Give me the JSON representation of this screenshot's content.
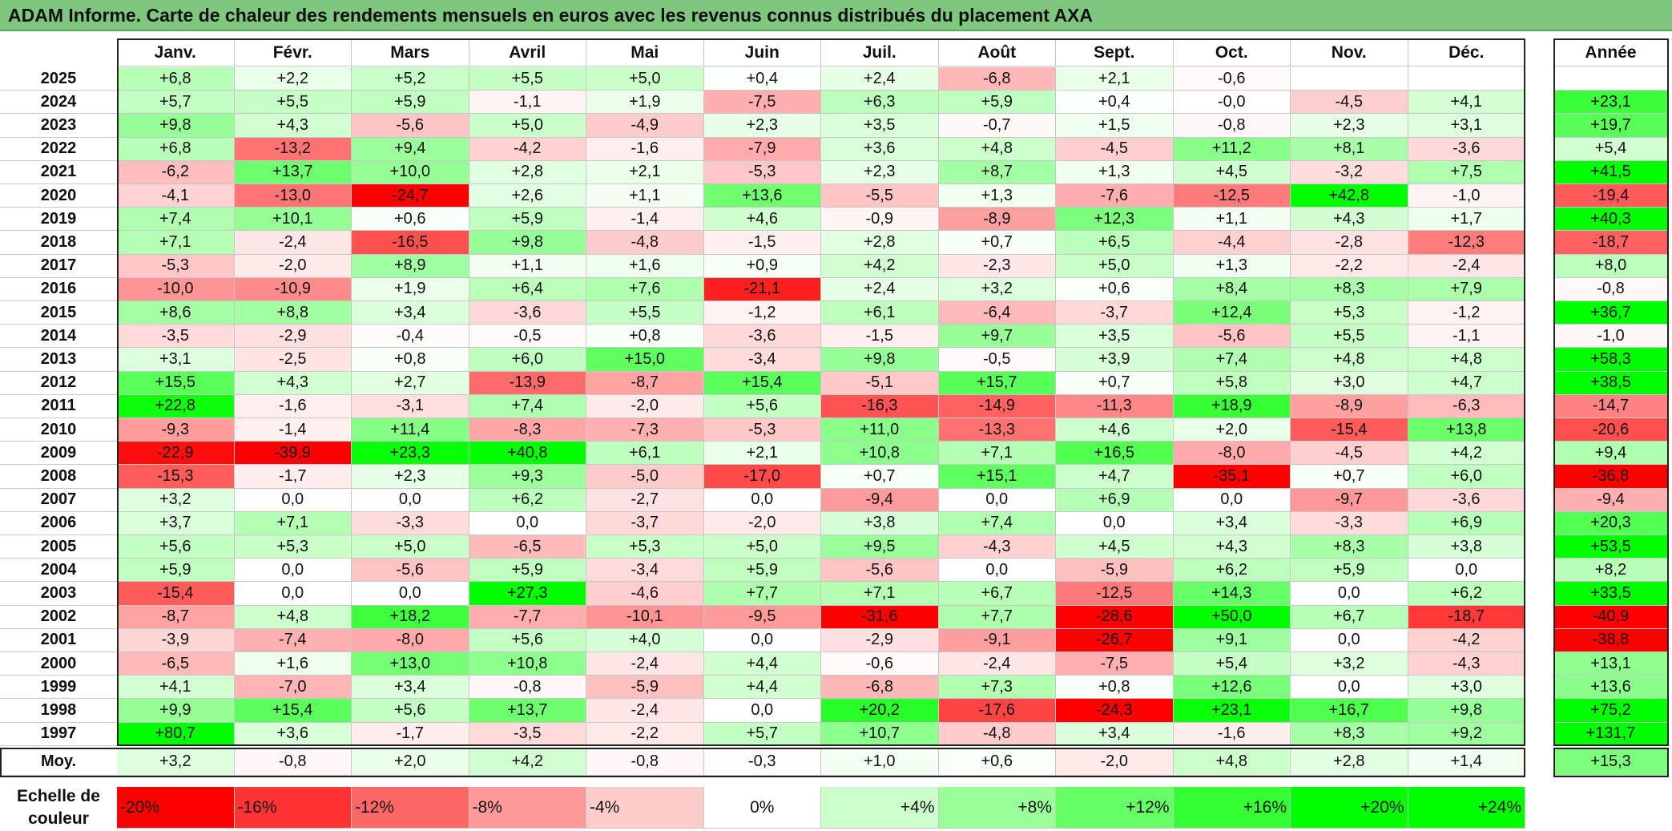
{
  "title": "ADAM Informe. Carte de chaleur des rendements mensuels en euros avec les revenus connus distribués du placement AXA",
  "chart_data": {
    "type": "heatmap",
    "title": "ADAM Informe. Carte de chaleur des rendements mensuels en euros avec les revenus connus distribués du placement AXA",
    "columns": [
      "Janv.",
      "Févr.",
      "Mars",
      "Avril",
      "Mai",
      "Juin",
      "Juil.",
      "Août",
      "Sept.",
      "Oct.",
      "Nov.",
      "Déc."
    ],
    "year_column_label": "Année",
    "rows": [
      {
        "year": "2025",
        "values": [
          "+6,8",
          "+2,2",
          "+5,2",
          "+5,5",
          "+5,0",
          "+0,4",
          "+2,4",
          "-6,8",
          "+2,1",
          "-0,6",
          "",
          ""
        ],
        "annual": ""
      },
      {
        "year": "2024",
        "values": [
          "+5,7",
          "+5,5",
          "+5,9",
          "-1,1",
          "+1,9",
          "-7,5",
          "+6,3",
          "+5,9",
          "+0,4",
          "-0,0",
          "-4,5",
          "+4,1"
        ],
        "annual": "+23,1"
      },
      {
        "year": "2023",
        "values": [
          "+9,8",
          "+4,3",
          "-5,6",
          "+5,0",
          "-4,9",
          "+2,3",
          "+3,5",
          "-0,7",
          "+1,5",
          "-0,8",
          "+2,3",
          "+3,1"
        ],
        "annual": "+19,7"
      },
      {
        "year": "2022",
        "values": [
          "+6,8",
          "-13,2",
          "+9,4",
          "-4,2",
          "-1,6",
          "-7,9",
          "+3,6",
          "+4,8",
          "-4,5",
          "+11,2",
          "+8,1",
          "-3,6"
        ],
        "annual": "+5,4"
      },
      {
        "year": "2021",
        "values": [
          "-6,2",
          "+13,7",
          "+10,0",
          "+2,8",
          "+2,1",
          "-5,3",
          "+2,3",
          "+8,7",
          "+1,3",
          "+4,5",
          "-3,2",
          "+7,5"
        ],
        "annual": "+41,5"
      },
      {
        "year": "2020",
        "values": [
          "-4,1",
          "-13,0",
          "-24,7",
          "+2,6",
          "+1,1",
          "+13,6",
          "-5,5",
          "+1,3",
          "-7,6",
          "-12,5",
          "+42,8",
          "-1,0"
        ],
        "annual": "-19,4"
      },
      {
        "year": "2019",
        "values": [
          "+7,4",
          "+10,1",
          "+0,6",
          "+5,9",
          "-1,4",
          "+4,6",
          "-0,9",
          "-8,9",
          "+12,3",
          "+1,1",
          "+4,3",
          "+1,7"
        ],
        "annual": "+40,3"
      },
      {
        "year": "2018",
        "values": [
          "+7,1",
          "-2,4",
          "-16,5",
          "+9,8",
          "-4,8",
          "-1,5",
          "+2,8",
          "+0,7",
          "+6,5",
          "-4,4",
          "-2,8",
          "-12,3"
        ],
        "annual": "-18,7"
      },
      {
        "year": "2017",
        "values": [
          "-5,3",
          "-2,0",
          "+8,9",
          "+1,1",
          "+1,6",
          "+0,9",
          "+4,2",
          "-2,3",
          "+5,0",
          "+1,3",
          "-2,2",
          "-2,4"
        ],
        "annual": "+8,0"
      },
      {
        "year": "2016",
        "values": [
          "-10,0",
          "-10,9",
          "+1,9",
          "+6,4",
          "+7,6",
          "-21,1",
          "+2,4",
          "+3,2",
          "+0,6",
          "+8,4",
          "+8,3",
          "+7,9"
        ],
        "annual": "-0,8"
      },
      {
        "year": "2015",
        "values": [
          "+8,6",
          "+8,8",
          "+3,4",
          "-3,6",
          "+5,5",
          "-1,2",
          "+6,1",
          "-6,4",
          "-3,7",
          "+12,4",
          "+5,3",
          "-1,2"
        ],
        "annual": "+36,7"
      },
      {
        "year": "2014",
        "values": [
          "-3,5",
          "-2,9",
          "-0,4",
          "-0,5",
          "+0,8",
          "-3,6",
          "-1,5",
          "+9,7",
          "+3,5",
          "-5,6",
          "+5,5",
          "-1,1"
        ],
        "annual": "-1,0"
      },
      {
        "year": "2013",
        "values": [
          "+3,1",
          "-2,5",
          "+0,8",
          "+6,0",
          "+15,0",
          "-3,4",
          "+9,8",
          "-0,5",
          "+3,9",
          "+7,4",
          "+4,8",
          "+4,8"
        ],
        "annual": "+58,3"
      },
      {
        "year": "2012",
        "values": [
          "+15,5",
          "+4,3",
          "+2,7",
          "-13,9",
          "-8,7",
          "+15,4",
          "-5,1",
          "+15,7",
          "+0,7",
          "+5,8",
          "+3,0",
          "+4,7"
        ],
        "annual": "+38,5"
      },
      {
        "year": "2011",
        "values": [
          "+22,8",
          "-1,6",
          "-3,1",
          "+7,4",
          "-2,0",
          "+5,6",
          "-16,3",
          "-14,9",
          "-11,3",
          "+18,9",
          "-8,9",
          "-6,3"
        ],
        "annual": "-14,7"
      },
      {
        "year": "2010",
        "values": [
          "-9,3",
          "-1,4",
          "+11,4",
          "-8,3",
          "-7,3",
          "-5,3",
          "+11,0",
          "-13,3",
          "+4,6",
          "+2,0",
          "-15,4",
          "+13,8"
        ],
        "annual": "-20,6"
      },
      {
        "year": "2009",
        "values": [
          "-22,9",
          "-39,9",
          "+23,3",
          "+40,8",
          "+6,1",
          "+2,1",
          "+10,8",
          "+7,1",
          "+16,5",
          "-8,0",
          "-4,5",
          "+4,2"
        ],
        "annual": "+9,4"
      },
      {
        "year": "2008",
        "values": [
          "-15,3",
          "-1,7",
          "+2,3",
          "+9,3",
          "-5,0",
          "-17,0",
          "+0,7",
          "+15,1",
          "+4,7",
          "-35,1",
          "+0,7",
          "+6,0"
        ],
        "annual": "-36,8"
      },
      {
        "year": "2007",
        "values": [
          "+3,2",
          "0,0",
          "0,0",
          "+6,2",
          "-2,7",
          "0,0",
          "-9,4",
          "0,0",
          "+6,9",
          "0,0",
          "-9,7",
          "-3,6"
        ],
        "annual": "-9,4"
      },
      {
        "year": "2006",
        "values": [
          "+3,7",
          "+7,1",
          "-3,3",
          "0,0",
          "-3,7",
          "-2,0",
          "+3,8",
          "+7,4",
          "0,0",
          "+3,4",
          "-3,3",
          "+6,9"
        ],
        "annual": "+20,3"
      },
      {
        "year": "2005",
        "values": [
          "+5,6",
          "+5,3",
          "+5,0",
          "-6,5",
          "+5,3",
          "+5,0",
          "+9,5",
          "-4,3",
          "+4,5",
          "+4,3",
          "+8,3",
          "+3,8"
        ],
        "annual": "+53,5"
      },
      {
        "year": "2004",
        "values": [
          "+5,9",
          "0,0",
          "-5,6",
          "+5,9",
          "-3,4",
          "+5,9",
          "-5,6",
          "0,0",
          "-5,9",
          "+6,2",
          "+5,9",
          "0,0"
        ],
        "annual": "+8,2"
      },
      {
        "year": "2003",
        "values": [
          "-15,4",
          "0,0",
          "0,0",
          "+27,3",
          "-4,6",
          "+7,7",
          "+7,1",
          "+6,7",
          "-12,5",
          "+14,3",
          "0,0",
          "+6,2"
        ],
        "annual": "+33,5"
      },
      {
        "year": "2002",
        "values": [
          "-8,7",
          "+4,8",
          "+18,2",
          "-7,7",
          "-10,1",
          "-9,5",
          "-31,6",
          "+7,7",
          "-28,6",
          "+50,0",
          "+6,7",
          "-18,7"
        ],
        "annual": "-40,9"
      },
      {
        "year": "2001",
        "values": [
          "-3,9",
          "-7,4",
          "-8,0",
          "+5,6",
          "+4,0",
          "0,0",
          "-2,9",
          "-9,1",
          "-26,7",
          "+9,1",
          "0,0",
          "-4,2"
        ],
        "annual": "-38,8"
      },
      {
        "year": "2000",
        "values": [
          "-6,5",
          "+1,6",
          "+13,0",
          "+10,8",
          "-2,4",
          "+4,4",
          "-0,6",
          "-2,4",
          "-7,5",
          "+5,4",
          "+3,2",
          "-4,3"
        ],
        "annual": "+13,1"
      },
      {
        "year": "1999",
        "values": [
          "+4,1",
          "-7,0",
          "+3,4",
          "-0,8",
          "-5,9",
          "+4,4",
          "-6,8",
          "+7,3",
          "+0,8",
          "+12,6",
          "0,0",
          "+3,0"
        ],
        "annual": "+13,6"
      },
      {
        "year": "1998",
        "values": [
          "+9,9",
          "+15,4",
          "+5,6",
          "+13,7",
          "-2,4",
          "0,0",
          "+20,2",
          "-17,6",
          "-24,3",
          "+23,1",
          "+16,7",
          "+9,8"
        ],
        "annual": "+75,2"
      },
      {
        "year": "1997",
        "values": [
          "+80,7",
          "+3,6",
          "-1,7",
          "-3,5",
          "-2,2",
          "+5,7",
          "+10,7",
          "-4,8",
          "+3,4",
          "-1,6",
          "+8,3",
          "+9,2"
        ],
        "annual": "+131,7"
      }
    ],
    "average": {
      "label": "Moy.",
      "values": [
        "+3,2",
        "-0,8",
        "+2,0",
        "+4,2",
        "-0,8",
        "-0,3",
        "+1,0",
        "+0,6",
        "-2,0",
        "+4,8",
        "+2,8",
        "+1,4"
      ],
      "annual": "+15,3"
    },
    "color_scale": {
      "label": "Echelle de couleur",
      "stops": [
        "-20%",
        "-16%",
        "-12%",
        "-8%",
        "-4%",
        "0%",
        "+4%",
        "+8%",
        "+12%",
        "+16%",
        "+20%",
        "+24%"
      ],
      "negative_color": "#ff0000",
      "neutral_color": "#ffffff",
      "positive_color": "#00ff00"
    }
  }
}
